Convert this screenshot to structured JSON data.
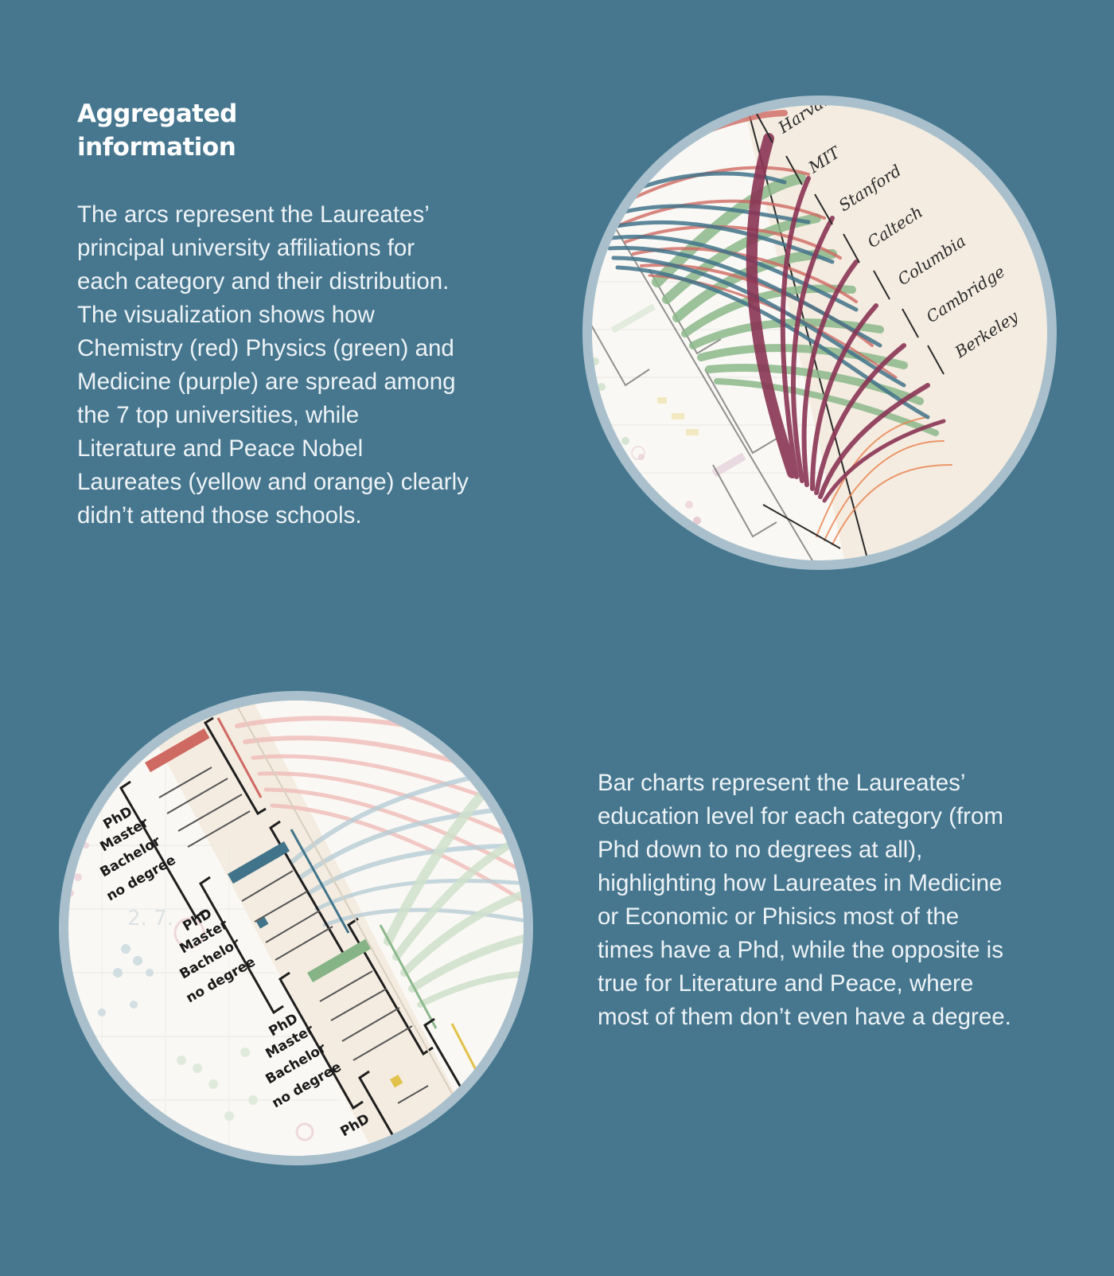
{
  "heading": {
    "line1": "Aggregated",
    "line2": "information"
  },
  "paragraph1": {
    "lines": [
      "The arcs represent the Laureates’",
      "principal university affiliations for",
      "each category and their distribution.",
      "The visualization shows how",
      "Chemistry (red) Physics (green) and",
      "Medicine (purple) are spread among",
      "the 7 top universities, while",
      "Literature and Peace Nobel",
      "Laureates (yellow and orange) clearly",
      "didn’t attend those schools."
    ]
  },
  "paragraph2": {
    "lines": [
      "Bar charts represent the Laureates’",
      "education level for each category (from",
      "Phd down to no degrees at all),",
      "highlighting how Laureates in Medicine",
      "or Economic or Phisics most of the",
      "times have a Phd, while the opposite is",
      "true for Literature and Peace, where",
      "most of them don’t even have a degree."
    ]
  },
  "universities": [
    "Harvard",
    "MIT",
    "Stanford",
    "Caltech",
    "Columbia",
    "Cambridge",
    "Berkeley"
  ],
  "education_levels": [
    "PhD",
    "Master",
    "Bachelor",
    "no degree"
  ],
  "education_levels_partial": "PhD",
  "colors": {
    "background": "#46778f",
    "chemistry": "#c9615a",
    "physics": "#86b487",
    "medicine": "#8a3555",
    "economics": "#3f6f84",
    "literature": "#e2c24a",
    "peace": "#e9824d",
    "paper": "#f4ece0",
    "ring": "#a9c0cc"
  }
}
